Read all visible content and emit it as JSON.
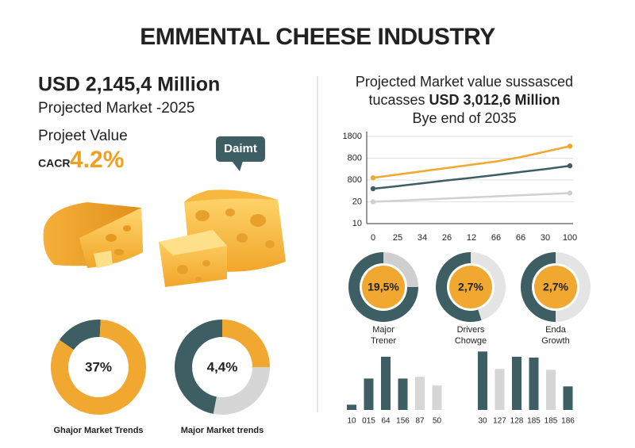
{
  "title": "EMMENTAL CHEESE INDUSTRY",
  "left": {
    "headline": "USD 2,145,4 Million",
    "subhead": "Projected Market -2025",
    "value_label": "Projeet Value",
    "cagr_label": "CACR",
    "cagr_value": "4.2%",
    "badge": "Daimt"
  },
  "right": {
    "heading_line1": "Projected Market value sussasced",
    "heading_line2_prefix": "tucasses",
    "heading_line2_bold": "USD 3,012,6 Million",
    "heading_line3": "Bye end of 2035"
  },
  "chart_data": [
    {
      "type": "line",
      "categories": [
        "0",
        "25",
        "34",
        "26",
        "12",
        "66",
        "66",
        "30",
        "100"
      ],
      "ylim": [
        0,
        4
      ],
      "yticks": [
        {
          "value": 0,
          "label": "10"
        },
        {
          "value": 1,
          "label": "20"
        },
        {
          "value": 2,
          "label": "800"
        },
        {
          "value": 3,
          "label": "800"
        },
        {
          "value": 4,
          "label": "1800"
        }
      ],
      "grid": true,
      "series": [
        {
          "color": "#f0a830",
          "values": [
            2.1,
            2.25,
            2.4,
            2.55,
            2.7,
            2.85,
            3.05,
            3.3,
            3.55
          ]
        },
        {
          "color": "#3d5f63",
          "values": [
            1.6,
            1.72,
            1.85,
            1.98,
            2.1,
            2.23,
            2.37,
            2.5,
            2.65
          ]
        },
        {
          "color": "#d0d0d0",
          "values": [
            1.0,
            1.05,
            1.1,
            1.15,
            1.2,
            1.25,
            1.3,
            1.35,
            1.4
          ]
        }
      ]
    },
    {
      "type": "donut",
      "center_label": "37%",
      "caption": [
        "Ghajor Market Trends"
      ],
      "values": [
        16,
        84
      ],
      "colors": [
        "#3d5f63",
        "#f0a830"
      ]
    },
    {
      "type": "donut",
      "center_label": "4,4%",
      "caption": [
        "Major Market trends"
      ],
      "values": [
        25,
        28,
        47
      ],
      "colors": [
        "#f0a830",
        "#d6d6d6",
        "#3d5f63"
      ]
    },
    {
      "type": "donut",
      "center_label": "19,5%",
      "caption": [
        "Major",
        "Trener"
      ],
      "values": [
        25,
        75
      ],
      "colors": [
        "#cfcfcf",
        "#3d5f63"
      ]
    },
    {
      "type": "donut",
      "center_label": "2,7%",
      "caption": [
        "Drivers",
        "Chowge"
      ],
      "values": [
        45,
        55
      ],
      "colors": [
        "#e4e4e4",
        "#3d5f63"
      ]
    },
    {
      "type": "donut",
      "center_label": "2,7%",
      "caption": [
        "Enda",
        "Growth"
      ],
      "values": [
        50,
        50
      ],
      "colors": [
        "#e4e4e4",
        "#3d5f63"
      ]
    },
    {
      "type": "bar",
      "categories": [
        "10",
        "015",
        "64",
        "156",
        "87",
        "50"
      ],
      "values": [
        6,
        36,
        61,
        36,
        38,
        28
      ],
      "ylim": [
        0,
        70
      ],
      "colors": [
        "#3d5f63",
        "#3d5f63",
        "#3d5f63",
        "#3d5f63",
        "#d6d6d6",
        "#d6d6d6"
      ]
    },
    {
      "type": "bar",
      "categories": [
        "30",
        "127",
        "128",
        "185",
        "185",
        "186"
      ],
      "values": [
        67,
        47,
        61,
        60,
        46,
        27
      ],
      "ylim": [
        0,
        70
      ],
      "colors": [
        "#3d5f63",
        "#d6d6d6",
        "#3d5f63",
        "#3d5f63",
        "#d6d6d6",
        "#3d5f63"
      ]
    }
  ]
}
